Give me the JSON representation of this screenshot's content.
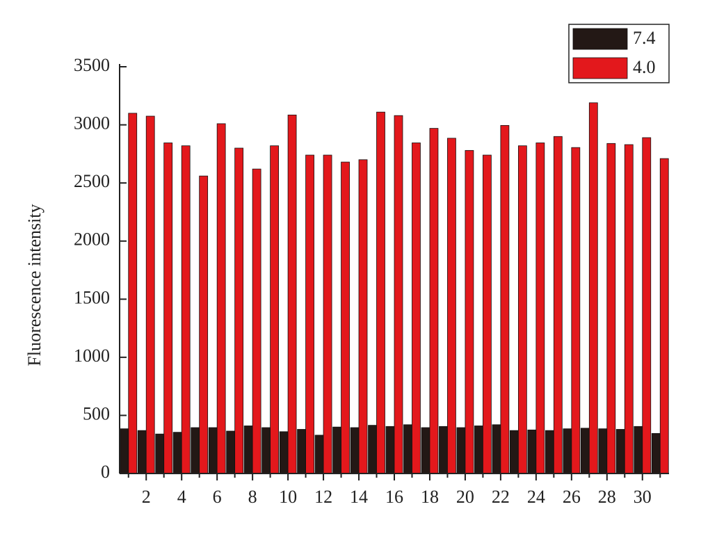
{
  "chart_data": {
    "type": "bar",
    "y_label": "Fluorescence intensity",
    "categories": [
      null,
      2,
      null,
      4,
      null,
      6,
      null,
      8,
      null,
      10,
      null,
      12,
      null,
      14,
      null,
      16,
      null,
      18,
      null,
      20,
      null,
      22,
      null,
      24,
      null,
      26,
      null,
      28,
      null,
      30,
      null
    ],
    "series": [
      {
        "name": "7.4",
        "color": "#231815",
        "values": [
          385,
          370,
          340,
          355,
          395,
          395,
          365,
          410,
          395,
          360,
          380,
          330,
          400,
          395,
          415,
          405,
          420,
          395,
          405,
          395,
          410,
          420,
          370,
          375,
          370,
          385,
          390,
          385,
          380,
          405,
          345
        ]
      },
      {
        "name": "4.0",
        "color": "#e3181c",
        "values": [
          3100,
          3075,
          2845,
          2820,
          2560,
          3010,
          2800,
          2620,
          2820,
          3085,
          2740,
          2740,
          2680,
          2700,
          3110,
          3080,
          2845,
          2970,
          2885,
          2780,
          2740,
          2995,
          2820,
          2845,
          2900,
          2805,
          3190,
          2840,
          2830,
          2890,
          2710
        ]
      }
    ],
    "ylim": [
      0,
      3500
    ],
    "yticks": [
      0,
      500,
      1000,
      1500,
      2000,
      2500,
      3000,
      3500
    ],
    "legend": "top-right"
  }
}
